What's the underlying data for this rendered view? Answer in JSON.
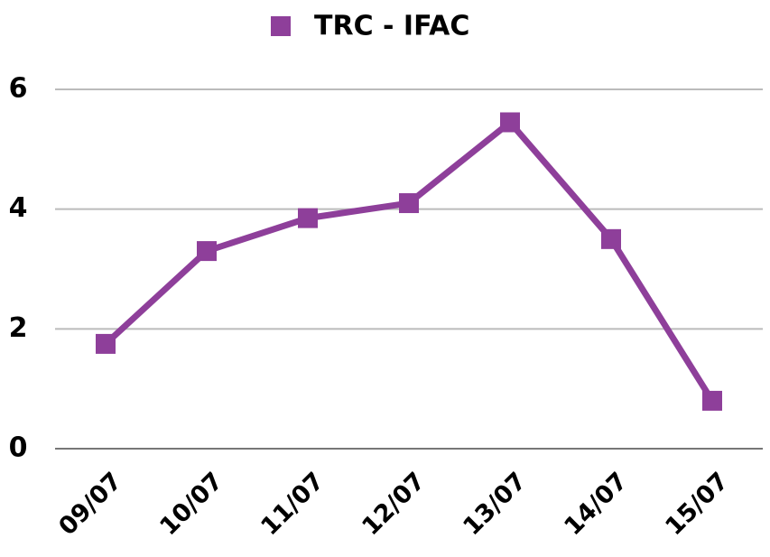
{
  "chart_data": {
    "type": "line",
    "categories": [
      "09/07",
      "10/07",
      "11/07",
      "12/07",
      "13/07",
      "14/07",
      "15/07"
    ],
    "series": [
      {
        "name": "TRC - IFAC",
        "color": "#8e3f9a",
        "values": [
          1.75,
          3.3,
          3.85,
          4.1,
          5.45,
          3.5,
          0.8
        ]
      }
    ],
    "ylim": [
      0,
      6
    ],
    "yticks": [
      0,
      2,
      4,
      6
    ],
    "grid": true,
    "legend": "top"
  }
}
